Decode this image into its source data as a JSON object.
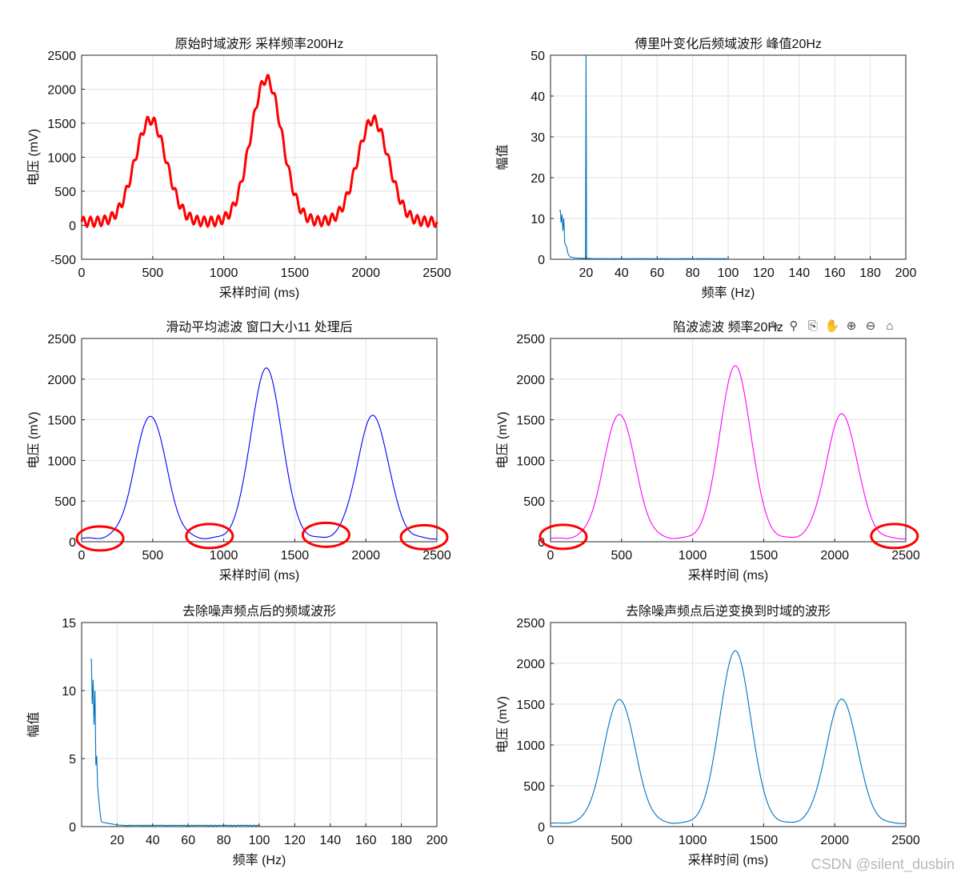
{
  "watermark": "CSDN @silent_dusbin",
  "toolbar": [
    {
      "icon": "brush-data-icon",
      "glyph": "✎"
    },
    {
      "icon": "data-tips-icon",
      "glyph": "⚲"
    },
    {
      "icon": "export-icon",
      "glyph": "⎘"
    },
    {
      "icon": "pan-icon",
      "glyph": "✋"
    },
    {
      "icon": "zoom-in-icon",
      "glyph": "⊕"
    },
    {
      "icon": "zoom-out-icon",
      "glyph": "⊖"
    },
    {
      "icon": "home-icon",
      "glyph": "⌂"
    }
  ],
  "chart_data": [
    {
      "type": "line",
      "title": "原始时域波形 采样频率200Hz",
      "xlabel": "采样时间 (ms)",
      "ylabel": "电压 (mV)",
      "xlim": [
        0,
        2500
      ],
      "ylim": [
        -500,
        2500
      ],
      "xticks": [
        0,
        500,
        1000,
        1500,
        2000,
        2500
      ],
      "yticks": [
        -500,
        0,
        500,
        1000,
        1500,
        2000,
        2500
      ],
      "color": "#ff0000",
      "line_style": "thick",
      "grid": true,
      "series": [
        {
          "peaks": [
            [
              485,
              1550
            ],
            [
              1300,
              2150
            ],
            [
              2050,
              1550
            ]
          ],
          "peak_width_ms": 110,
          "baseline": 50,
          "noise_amplitude": 70,
          "noise_frequency_hz": 20
        }
      ]
    },
    {
      "type": "line",
      "title": "傅里叶变化后频域波形 峰值20Hz",
      "xlabel": "频率 (Hz)",
      "ylabel": "幅值",
      "xlim": [
        0,
        200
      ],
      "ylim": [
        0,
        50
      ],
      "xticks": [
        20,
        40,
        60,
        80,
        100,
        120,
        140,
        160,
        180,
        200
      ],
      "yticks": [
        0,
        10,
        20,
        30,
        40,
        50
      ],
      "color": "#0072bd",
      "grid": true,
      "series": [
        {
          "low_freq_values": [
            [
              0.5,
              12
            ],
            [
              1,
              9
            ],
            [
              1.5,
              11
            ],
            [
              2,
              7
            ],
            [
              2.5,
              10
            ],
            [
              3,
              4
            ],
            [
              4,
              3
            ],
            [
              5,
              1.2
            ],
            [
              6,
              0.6
            ],
            [
              8,
              0.4
            ],
            [
              10,
              0.3
            ],
            [
              12,
              0.25
            ],
            [
              15,
              0.2
            ],
            [
              18,
              0.2
            ]
          ],
          "spike": [
            20,
            50
          ],
          "data_end_hz": 100,
          "tail_value": 0.1
        }
      ]
    },
    {
      "type": "line",
      "title": "滑动平均滤波 窗口大小11 处理后",
      "xlabel": "采样时间 (ms)",
      "ylabel": "电压 (mV)",
      "xlim": [
        0,
        2500
      ],
      "ylim": [
        0,
        2500
      ],
      "xticks": [
        0,
        500,
        1000,
        1500,
        2000,
        2500
      ],
      "yticks": [
        0,
        500,
        1000,
        1500,
        2000,
        2500
      ],
      "color": "#0000ff",
      "grid": true,
      "series": [
        {
          "peaks": [
            [
              485,
              1550
            ],
            [
              1300,
              2130
            ],
            [
              2050,
              1550
            ]
          ],
          "peak_width_ms": 110,
          "baseline": 40,
          "ripple_amplitude": 8
        }
      ],
      "highlight_circles": [
        [
          130,
          40
        ],
        [
          900,
          70
        ],
        [
          1720,
          85
        ],
        [
          2410,
          55
        ]
      ]
    },
    {
      "type": "line",
      "title": "陷波滤波 频率20Hz",
      "xlabel": "采样时间 (ms)",
      "ylabel": "电压 (mV)",
      "xlim": [
        0,
        2500
      ],
      "ylim": [
        0,
        2500
      ],
      "xticks": [
        0,
        500,
        1000,
        1500,
        2000,
        2500
      ],
      "yticks": [
        0,
        500,
        1000,
        1500,
        2000,
        2500
      ],
      "color": "#ff00ff",
      "grid": true,
      "series": [
        {
          "peaks": [
            [
              485,
              1570
            ],
            [
              1300,
              2160
            ],
            [
              2050,
              1570
            ]
          ],
          "peak_width_ms": 110,
          "baseline": 40,
          "ripple_amplitude": 6
        }
      ],
      "highlight_circles": [
        [
          90,
          60
        ],
        [
          2420,
          70
        ]
      ]
    },
    {
      "type": "line",
      "title": "去除噪声频点后的频域波形",
      "xlabel": "频率 (Hz)",
      "ylabel": "幅值",
      "xlim": [
        0,
        200
      ],
      "ylim": [
        0,
        15
      ],
      "xticks": [
        20,
        40,
        60,
        80,
        100,
        120,
        140,
        160,
        180,
        200
      ],
      "yticks": [
        0,
        5,
        10,
        15
      ],
      "color": "#0072bd",
      "grid": true,
      "series": [
        {
          "low_freq_values": [
            [
              0.5,
              12.3
            ],
            [
              1,
              9
            ],
            [
              1.5,
              10.8
            ],
            [
              2,
              7.5
            ],
            [
              2.5,
              10
            ],
            [
              3,
              4.5
            ],
            [
              3.5,
              5.2
            ],
            [
              4,
              3
            ],
            [
              5,
              1.5
            ],
            [
              6,
              0.4
            ],
            [
              7,
              0.3
            ],
            [
              10,
              0.25
            ],
            [
              15,
              0.12
            ],
            [
              20,
              0.08
            ]
          ],
          "data_end_hz": 100,
          "tail_value": 0.05
        }
      ]
    },
    {
      "type": "line",
      "title": "去除噪声频点后逆变换到时域的波形",
      "xlabel": "采样时间 (ms)",
      "ylabel": "电压 (mV)",
      "xlim": [
        0,
        2500
      ],
      "ylim": [
        0,
        2500
      ],
      "xticks": [
        0,
        500,
        1000,
        1500,
        2000,
        2500
      ],
      "yticks": [
        0,
        500,
        1000,
        1500,
        2000,
        2500
      ],
      "color": "#0072bd",
      "grid": true,
      "series": [
        {
          "peaks": [
            [
              485,
              1560
            ],
            [
              1300,
              2150
            ],
            [
              2050,
              1560
            ]
          ],
          "peak_width_ms": 110,
          "baseline": 40,
          "ripple_amplitude": 4
        }
      ]
    }
  ]
}
